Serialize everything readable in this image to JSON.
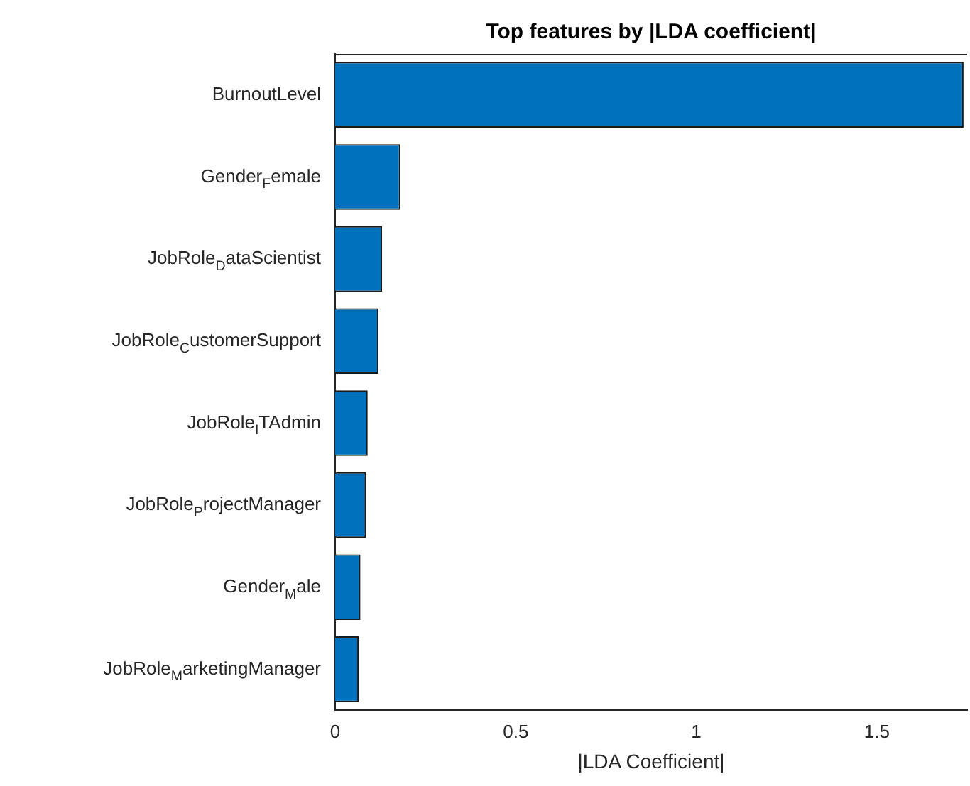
{
  "chart_data": {
    "type": "bar",
    "orientation": "horizontal",
    "title": "Top features by |LDA coefficient|",
    "xlabel": "|LDA Coefficient|",
    "categories": [
      "BurnoutLevel",
      "Gender$_{F}$emale",
      "JobRole$_{D}$ataScientist",
      "JobRole$_{C}$ustomerSupport",
      "JobRole$_{I}$TAdmin",
      "JobRole$_{P}$rojectManager",
      "Gender$_{M}$ale",
      "JobRole$_{M}$arketingManager"
    ],
    "values": [
      1.74,
      0.18,
      0.13,
      0.12,
      0.09,
      0.085,
      0.07,
      0.065
    ],
    "color": "#0072bd",
    "xlim": [
      0,
      1.75
    ],
    "xticks": [
      0,
      0.5,
      1,
      1.5
    ],
    "grid": false,
    "legend": false
  }
}
